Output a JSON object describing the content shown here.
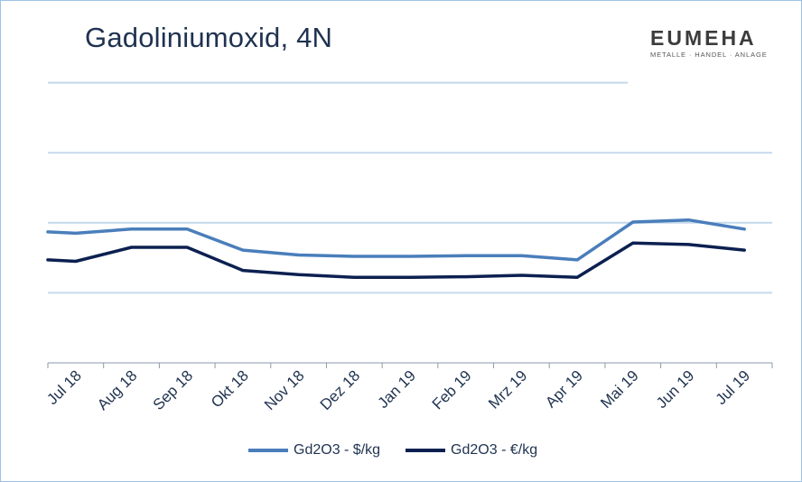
{
  "title": "Gadoliniumoxid, 4N",
  "logo": {
    "name": "EUMEHA",
    "tagline": "METALLE · HANDEL · ANLAGE"
  },
  "chart_data": {
    "type": "line",
    "title": "Gadoliniumoxid, 4N",
    "categories": [
      "Jul 18",
      "Aug 18",
      "Sep 18",
      "Okt 18",
      "Nov 18",
      "Dez 18",
      "Jan 19",
      "Feb 19",
      "Mrz 19",
      "Apr 19",
      "Mai 19",
      "Jun 19",
      "Jul 19"
    ],
    "series": [
      {
        "name": "Gd2O3 - $/kg",
        "color": "#4a7ebb",
        "points": [
          [
            0,
            48.7
          ],
          [
            0.5,
            48.5
          ],
          [
            1.5,
            49.1
          ],
          [
            2.5,
            49.1
          ],
          [
            3.5,
            46.1
          ],
          [
            4.5,
            45.4
          ],
          [
            5.5,
            45.2
          ],
          [
            6.5,
            45.2
          ],
          [
            7.5,
            45.3
          ],
          [
            8.5,
            45.3
          ],
          [
            9.5,
            44.7
          ],
          [
            10.5,
            50.1
          ],
          [
            11.5,
            50.4
          ],
          [
            12.5,
            49.1
          ]
        ]
      },
      {
        "name": "Gd2O3 - €/kg",
        "color": "#0c2050",
        "points": [
          [
            0,
            44.7
          ],
          [
            0.5,
            44.5
          ],
          [
            1.5,
            46.5
          ],
          [
            2.5,
            46.5
          ],
          [
            3.5,
            43.2
          ],
          [
            4.5,
            42.6
          ],
          [
            5.5,
            42.2
          ],
          [
            6.5,
            42.2
          ],
          [
            7.5,
            42.3
          ],
          [
            8.5,
            42.5
          ],
          [
            9.5,
            42.2
          ],
          [
            10.5,
            47.1
          ],
          [
            11.5,
            46.9
          ],
          [
            12.5,
            46.1
          ]
        ]
      }
    ],
    "ylim": [
      30,
      80
    ],
    "gridlines": [
      40,
      50,
      60,
      70
    ],
    "grid": true,
    "xlabel": "",
    "ylabel": "",
    "legend": "bottom"
  }
}
